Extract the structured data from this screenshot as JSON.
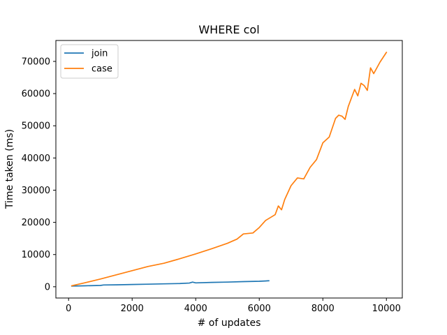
{
  "chart_data": {
    "type": "line",
    "title": "WHERE col",
    "xlabel": "# of updates",
    "ylabel": "Time taken (ms)",
    "xlim": [
      -400,
      10500
    ],
    "ylim": [
      -3500,
      76500
    ],
    "xticks": [
      0,
      2000,
      4000,
      6000,
      8000,
      10000
    ],
    "xtick_labels": [
      "0",
      "2000",
      "4000",
      "6000",
      "8000",
      "10000"
    ],
    "yticks": [
      0,
      10000,
      20000,
      30000,
      40000,
      50000,
      60000,
      70000
    ],
    "ytick_labels": [
      "0",
      "10000",
      "20000",
      "30000",
      "40000",
      "50000",
      "60000",
      "70000"
    ],
    "grid": false,
    "legend_position": "upper-left",
    "series": [
      {
        "name": "join",
        "color": "#1f77b4",
        "x": [
          100,
          500,
          1000,
          1100,
          1500,
          2000,
          2500,
          3000,
          3500,
          3800,
          3900,
          4000,
          4500,
          5000,
          5500,
          6000,
          6300
        ],
        "y": [
          200,
          300,
          400,
          550,
          600,
          700,
          800,
          900,
          1000,
          1150,
          1450,
          1200,
          1350,
          1450,
          1600,
          1700,
          1850
        ]
      },
      {
        "name": "case",
        "color": "#ff7f0e",
        "x": [
          100,
          500,
          1000,
          1500,
          2000,
          2500,
          3000,
          3500,
          4000,
          4500,
          5000,
          5300,
          5500,
          5800,
          6000,
          6200,
          6500,
          6600,
          6700,
          6800,
          7000,
          7200,
          7400,
          7600,
          7800,
          8000,
          8200,
          8400,
          8500,
          8600,
          8700,
          8800,
          9000,
          9100,
          9200,
          9300,
          9400,
          9500,
          9600,
          9800,
          10000
        ],
        "y": [
          300,
          1200,
          2400,
          3700,
          5000,
          6300,
          7300,
          8700,
          10200,
          11800,
          13500,
          14800,
          16400,
          16700,
          18400,
          20600,
          22400,
          25100,
          23900,
          27100,
          31400,
          33800,
          33500,
          37100,
          39500,
          44700,
          46500,
          52300,
          53300,
          53000,
          52000,
          56000,
          61300,
          59300,
          63200,
          62500,
          61000,
          68000,
          66200,
          69800,
          72800
        ]
      }
    ]
  }
}
